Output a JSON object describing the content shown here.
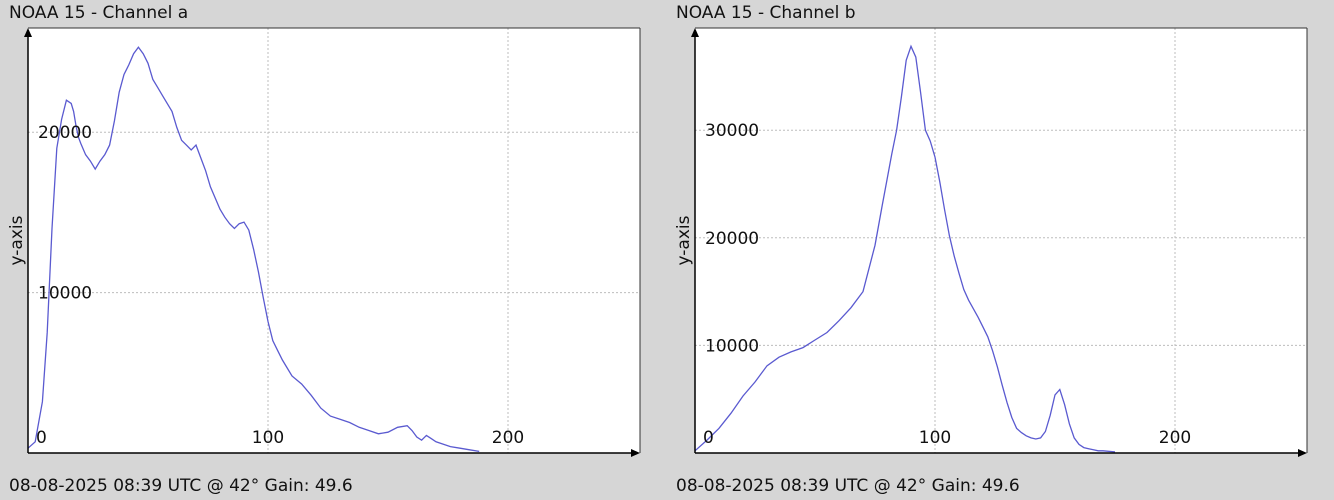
{
  "chart_data": [
    {
      "type": "line",
      "title": "NOAA 15 - Channel a",
      "footer": "08-08-2025 08:39 UTC @ 42° Gain: 49.6",
      "ylabel": "y-axis",
      "xlabel": "",
      "xlim": [
        0,
        255
      ],
      "ylim": [
        0,
        26500
      ],
      "xticks": [
        0,
        100,
        200
      ],
      "yticks": [
        10000,
        20000
      ],
      "grid": true,
      "line_color": "#5a5ad0",
      "series": [
        {
          "x": [
            0,
            3,
            6,
            8,
            10,
            12,
            14,
            16,
            17,
            18,
            19,
            20,
            21,
            22,
            24,
            26,
            28,
            30,
            32,
            34,
            36,
            38,
            40,
            42,
            44,
            46,
            48,
            50,
            51,
            52,
            54,
            56,
            58,
            60,
            62,
            64,
            66,
            68,
            70,
            72,
            74,
            76,
            78,
            80,
            82,
            84,
            86,
            88,
            90,
            92,
            94,
            96,
            98,
            100,
            102,
            104,
            106,
            108,
            110,
            114,
            118,
            122,
            126,
            130,
            134,
            138,
            142,
            146,
            150,
            154,
            158,
            160,
            162,
            164,
            166,
            168,
            170,
            172,
            176,
            180,
            184,
            188
          ],
          "y": [
            300,
            700,
            3200,
            7500,
            14000,
            19000,
            20800,
            22000,
            21900,
            21800,
            21300,
            20400,
            19700,
            19300,
            18600,
            18200,
            17700,
            18200,
            18600,
            19200,
            20700,
            22500,
            23600,
            24200,
            24900,
            25300,
            24900,
            24300,
            23800,
            23300,
            22800,
            22300,
            21800,
            21300,
            20300,
            19500,
            19200,
            18900,
            19200,
            18400,
            17600,
            16600,
            15900,
            15200,
            14700,
            14300,
            14000,
            14300,
            14400,
            13900,
            12700,
            11300,
            9700,
            8200,
            7000,
            6400,
            5800,
            5300,
            4800,
            4300,
            3600,
            2800,
            2300,
            2100,
            1900,
            1600,
            1400,
            1200,
            1300,
            1600,
            1700,
            1400,
            1000,
            800,
            1100,
            900,
            700,
            600,
            400,
            300,
            200,
            100
          ]
        }
      ]
    },
    {
      "type": "line",
      "title": "NOAA 15 - Channel b",
      "footer": "08-08-2025 08:39 UTC @ 42° Gain: 49.6",
      "ylabel": "y-axis",
      "xlabel": "",
      "xlim": [
        0,
        255
      ],
      "ylim": [
        0,
        39500
      ],
      "xticks": [
        0,
        100,
        200
      ],
      "yticks": [
        10000,
        20000,
        30000
      ],
      "grid": true,
      "line_color": "#5a5ad0",
      "series": [
        {
          "x": [
            0,
            5,
            10,
            15,
            20,
            25,
            30,
            35,
            40,
            45,
            50,
            55,
            60,
            65,
            70,
            75,
            78,
            80,
            82,
            84,
            86,
            88,
            90,
            92,
            94,
            96,
            98,
            100,
            102,
            104,
            106,
            108,
            110,
            112,
            114,
            116,
            118,
            120,
            122,
            124,
            126,
            128,
            130,
            132,
            134,
            136,
            138,
            140,
            142,
            144,
            146,
            148,
            150,
            152,
            154,
            156,
            158,
            160,
            162,
            164,
            166,
            168,
            170,
            175
          ],
          "y": [
            200,
            1200,
            2300,
            3700,
            5300,
            6600,
            8100,
            8900,
            9400,
            9800,
            10500,
            11200,
            12300,
            13500,
            15000,
            19300,
            23000,
            25400,
            27800,
            30000,
            33100,
            36500,
            37800,
            36800,
            33500,
            30000,
            29000,
            27500,
            25200,
            22600,
            20200,
            18300,
            16700,
            15200,
            14200,
            13400,
            12600,
            11700,
            10800,
            9500,
            8000,
            6300,
            4700,
            3300,
            2300,
            1900,
            1600,
            1400,
            1300,
            1400,
            2000,
            3500,
            5400,
            5900,
            4500,
            2700,
            1400,
            800,
            500,
            400,
            300,
            200,
            200,
            100
          ]
        }
      ]
    }
  ]
}
